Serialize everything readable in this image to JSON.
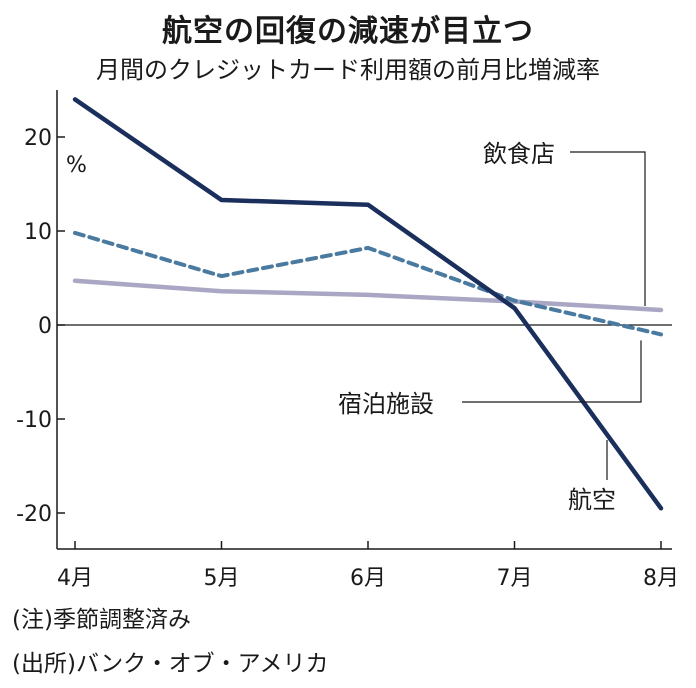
{
  "chart_data": {
    "type": "line",
    "title": "航空の回復の減速が目立つ",
    "subtitle": "月間のクレジットカード利用額の前月比増減率",
    "unit": "%",
    "categories": [
      "4月",
      "5月",
      "6月",
      "7月",
      "8月"
    ],
    "y_ticks": [
      "20",
      "10",
      "0",
      "-10",
      "-20"
    ],
    "ylim": [
      -24,
      26
    ],
    "grid": false,
    "series": [
      {
        "name": "航空",
        "values": [
          24,
          13.3,
          12.8,
          1.8,
          -19.5
        ],
        "color": "#1b2f5c",
        "style": "solid"
      },
      {
        "name": "飲食店",
        "values": [
          4.7,
          3.6,
          3.2,
          2.5,
          1.6
        ],
        "color": "#a9a7c4",
        "style": "solid"
      },
      {
        "name": "宿泊施設",
        "values": [
          9.8,
          5.2,
          8.2,
          2.6,
          -1.0
        ],
        "color": "#4a7aa0",
        "style": "dashed"
      }
    ]
  },
  "notes": {
    "note1": "(注)季節調整済み",
    "note2": "(出所)バンク・オブ・アメリカ"
  }
}
